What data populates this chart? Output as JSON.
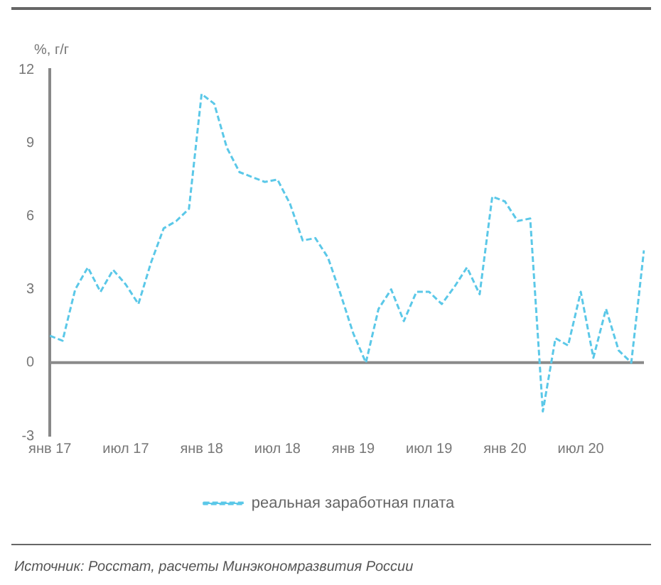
{
  "chart_data": {
    "type": "line",
    "ylabel": "%, г/г",
    "categories": [
      "янв 17",
      null,
      null,
      null,
      null,
      null,
      "июл 17",
      null,
      null,
      null,
      null,
      null,
      "янв 18",
      null,
      null,
      null,
      null,
      null,
      "июл 18",
      null,
      null,
      null,
      null,
      null,
      "янв 19",
      null,
      null,
      null,
      null,
      null,
      "июл 19",
      null,
      null,
      null,
      null,
      null,
      "янв 20",
      null,
      null,
      null,
      null,
      null,
      "июл 20",
      null,
      null,
      null,
      null,
      null
    ],
    "series": [
      {
        "name": "реальная заработная плата",
        "color": "#5bc8e8",
        "values": [
          1.1,
          0.9,
          3.0,
          3.9,
          2.9,
          3.8,
          3.2,
          2.4,
          4.1,
          5.5,
          5.8,
          6.3,
          11.0,
          10.6,
          8.8,
          7.8,
          7.6,
          7.4,
          7.5,
          6.5,
          5.0,
          5.1,
          4.3,
          2.8,
          1.2,
          0.0,
          2.2,
          3.0,
          1.7,
          2.9,
          2.9,
          2.4,
          3.1,
          3.9,
          2.8,
          6.8,
          6.6,
          5.8,
          5.9,
          -2.0,
          1.0,
          0.7,
          2.9,
          0.2,
          2.2,
          0.5,
          0.0,
          4.6
        ]
      }
    ],
    "ylim": [
      -3,
      12
    ],
    "yticks": [
      -3,
      0,
      3,
      6,
      9,
      12
    ],
    "grid": false,
    "legend": "bottom",
    "marker": "none",
    "line_style": "dashed",
    "ref_lines": [
      {
        "axis": "y",
        "value": 0,
        "color": "#8a8a8a"
      }
    ],
    "annotations": [
      "Источник: Росстат, расчеты Минэкономразвития России"
    ]
  }
}
